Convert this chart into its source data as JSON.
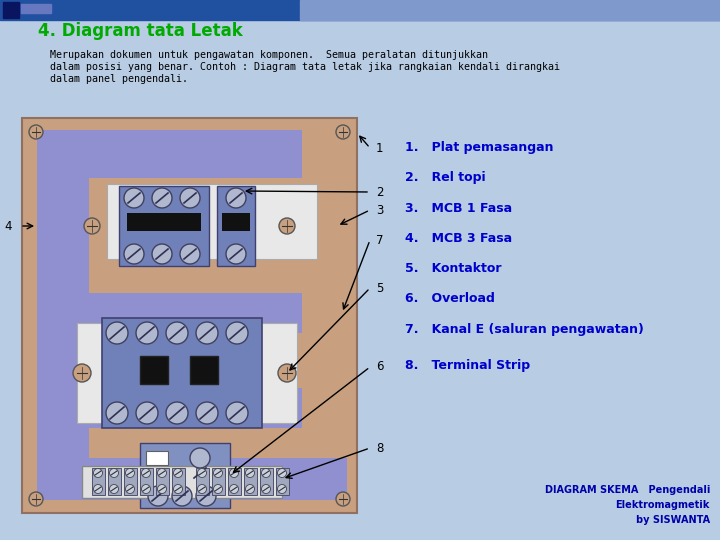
{
  "bg_color": "#b8cce4",
  "title": "4. Diagram tata Letak",
  "title_color": "#00aa00",
  "subtitle_line1": "Merupakan dokumen untuk pengawatan komponen.  Semua peralatan ditunjukkan",
  "subtitle_line2": "dalam posisi yang benar. Contoh : Diagram tata letak jika rangkaian kendali dirangkai",
  "subtitle_line3": "dalam panel pengendali.",
  "subtitle_color": "#000000",
  "list_color": "#0000cc",
  "list_items": [
    "1.   Plat pemasangan",
    "2.   Rel topi",
    "3.   MCB 1 Fasa",
    "4.   MCB 3 Fasa",
    "5.   Kontaktor",
    "6.   Overload",
    "7.   Kanal E (saluran pengawatan)",
    "8.   Terminal Strip"
  ],
  "footer_line1": "DIAGRAM SKEMA   Pengendali",
  "footer_line2": "Elektromagmetik",
  "footer_line3": "by SISWANTA",
  "panel_tan": "#c8a080",
  "panel_blue": "#9090d0",
  "header_bar_color": "#3060a0"
}
